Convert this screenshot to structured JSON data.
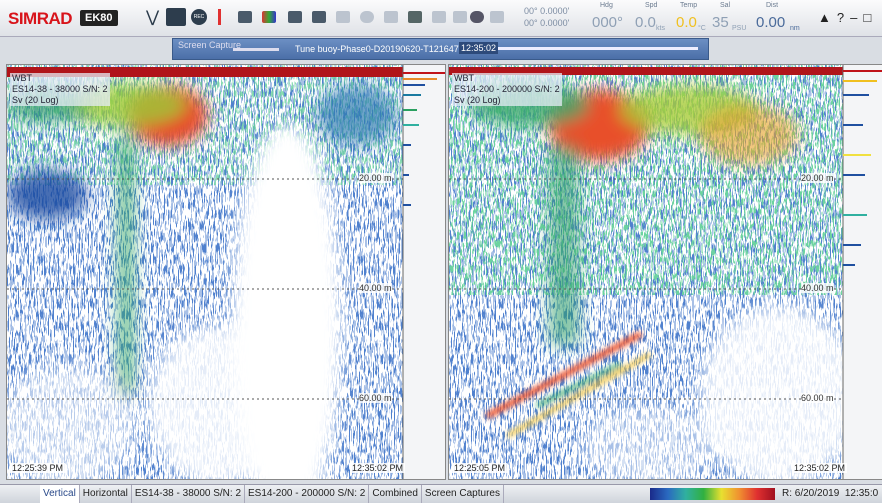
{
  "toolbar": {
    "logo": "SIMRAD",
    "model": "EK80",
    "rec": "REC",
    "latitude": "00° 0.0000'",
    "longitude": "00° 0.0000'",
    "heading": {
      "label": "Hdg",
      "value": "000°"
    },
    "speed": {
      "label": "Spd",
      "value": "0.0",
      "unit": "kts"
    },
    "temperature": {
      "label": "Temp",
      "value": "0.0",
      "unit": "°C"
    },
    "salinity": {
      "label": "Sal",
      "value": "35",
      "unit": "PSU"
    },
    "distance": {
      "label": "Dist",
      "value": "0.00",
      "unit": "nm"
    }
  },
  "replay_bar": {
    "screen_capture": "Screen Capture",
    "file": "Tune buoy-Phase0-D20190620-T121647-0",
    "time": "12:35:02"
  },
  "panels": [
    {
      "transducer": "WBT",
      "channel": "ES14-38 - 38000 S/N: 2",
      "mode": "Sv (20 Log)",
      "depths": [
        "20.00 m",
        "40.00 m",
        "60.00 m"
      ],
      "start_time": "12:25:39 PM",
      "end_time": "12:35:02 PM"
    },
    {
      "transducer": "WBT",
      "channel": "ES14-200 - 200000 S/N: 2",
      "mode": "Sv (20 Log)",
      "depths": [
        "20.00 m",
        "40.00 m",
        "60.00 m"
      ],
      "start_time": "12:25:05 PM",
      "end_time": "12:35:02 PM"
    }
  ],
  "tabs": [
    "Vertical",
    "Horizontal",
    "ES14-38 - 38000 S/N: 2",
    "ES14-200 - 200000 S/N: 2",
    "Combined",
    "Screen Captures"
  ],
  "status": "R: 6/20/2019  12:35:0"
}
